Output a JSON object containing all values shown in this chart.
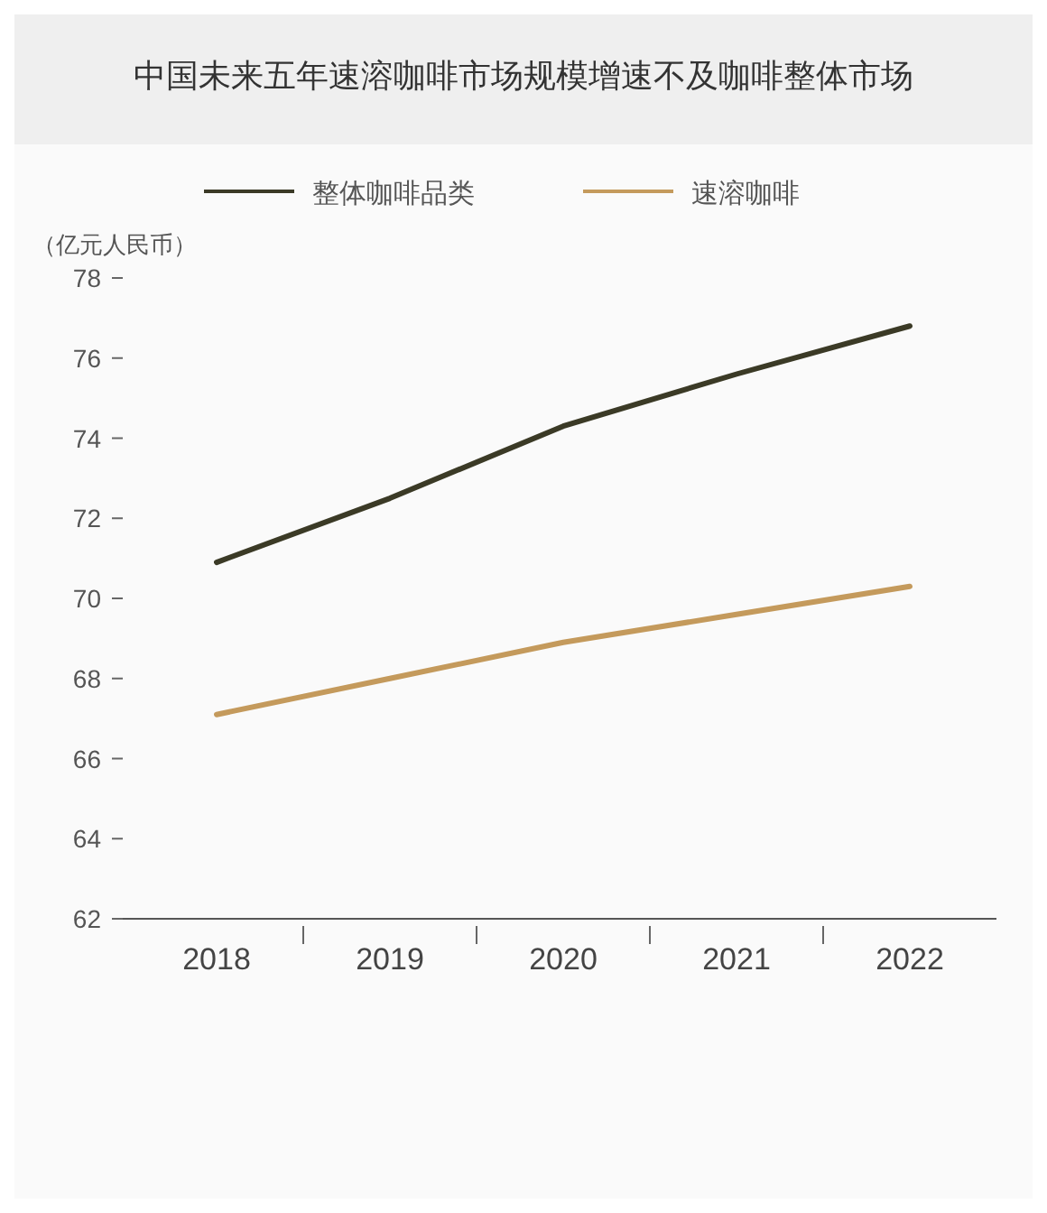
{
  "chart_data": {
    "type": "line",
    "title": "中国未来五年速溶咖啡市场规模增速不及咖啡整体市场",
    "ylabel": "（亿元人民币）",
    "categories": [
      "2018",
      "2019",
      "2020",
      "2021",
      "2022"
    ],
    "series": [
      {
        "name": "整体咖啡品类",
        "color": "#3b3a26",
        "values": [
          70.9,
          72.5,
          74.3,
          75.6,
          76.8
        ]
      },
      {
        "name": "速溶咖啡",
        "color": "#c49a5c",
        "values": [
          67.1,
          68.0,
          68.9,
          69.6,
          70.3
        ]
      }
    ],
    "ylim": [
      62,
      78
    ],
    "yticks": [
      62,
      64,
      66,
      68,
      70,
      72,
      74,
      76,
      78
    ],
    "legend": "top",
    "grid": false
  }
}
